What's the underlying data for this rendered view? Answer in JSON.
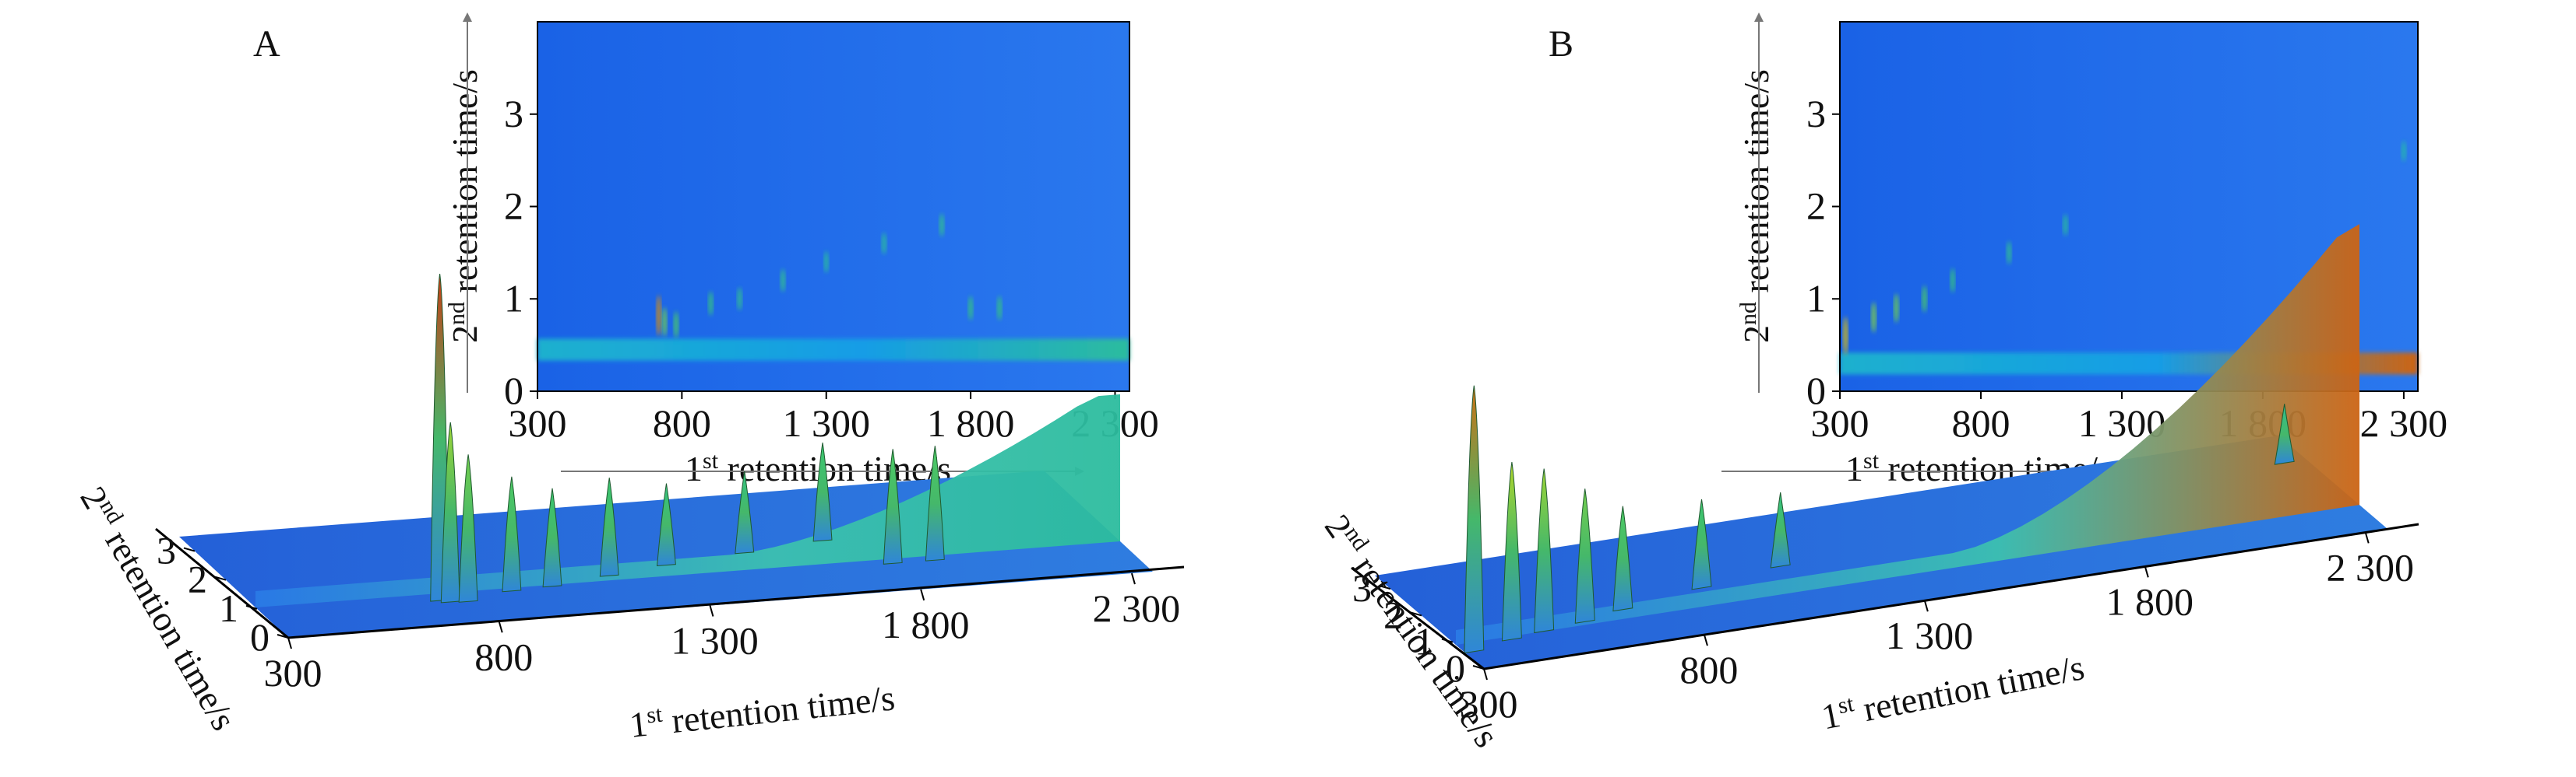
{
  "chart_data": [
    {
      "panel": "A",
      "type": "heatmap",
      "views": [
        "3d-surface",
        "2d-contour"
      ],
      "xlabel_main": "1",
      "xlabel_sup": "st",
      "xlabel_rest": " retention time/s",
      "ylabel_main": "2",
      "ylabel_sup": "nd",
      "ylabel_rest": " retention time/s",
      "xticks": [
        "300",
        "800",
        "1 300",
        "1 800",
        "2 300"
      ],
      "yticks": [
        "0",
        "1",
        "2",
        "3"
      ],
      "xlim": [
        300,
        2350
      ],
      "ylim": [
        0,
        4
      ],
      "peaks": [
        {
          "x": 720,
          "y": 0.82,
          "intensity": 1.0
        },
        {
          "x": 740,
          "y": 0.75,
          "intensity": 0.55
        },
        {
          "x": 780,
          "y": 0.72,
          "intensity": 0.45
        },
        {
          "x": 900,
          "y": 0.95,
          "intensity": 0.35
        },
        {
          "x": 1000,
          "y": 1.0,
          "intensity": 0.3
        },
        {
          "x": 1150,
          "y": 1.2,
          "intensity": 0.3
        },
        {
          "x": 1300,
          "y": 1.4,
          "intensity": 0.25
        },
        {
          "x": 1500,
          "y": 1.6,
          "intensity": 0.25
        },
        {
          "x": 1700,
          "y": 1.8,
          "intensity": 0.3
        },
        {
          "x": 1800,
          "y": 0.9,
          "intensity": 0.35
        },
        {
          "x": 1900,
          "y": 0.9,
          "intensity": 0.35
        }
      ],
      "baseline_band": {
        "y": 0.45,
        "x_from": 300,
        "x_to": 2350,
        "intensity_end": 0.45
      }
    },
    {
      "panel": "B",
      "type": "heatmap",
      "views": [
        "3d-surface",
        "2d-contour"
      ],
      "xlabel_main": "1",
      "xlabel_sup": "st",
      "xlabel_rest": " retention time/s",
      "ylabel_main": "2",
      "ylabel_sup": "nd",
      "ylabel_rest": " retention time/s",
      "xticks": [
        "300",
        "800",
        "1 300",
        "1 800",
        "2 300"
      ],
      "yticks": [
        "0",
        "1",
        "2",
        "3"
      ],
      "xlim": [
        300,
        2350
      ],
      "ylim": [
        0,
        4
      ],
      "peaks": [
        {
          "x": 320,
          "y": 0.6,
          "intensity": 0.9
        },
        {
          "x": 420,
          "y": 0.8,
          "intensity": 0.6
        },
        {
          "x": 500,
          "y": 0.9,
          "intensity": 0.55
        },
        {
          "x": 600,
          "y": 1.0,
          "intensity": 0.45
        },
        {
          "x": 700,
          "y": 1.2,
          "intensity": 0.35
        },
        {
          "x": 900,
          "y": 1.5,
          "intensity": 0.3
        },
        {
          "x": 1100,
          "y": 1.8,
          "intensity": 0.25
        },
        {
          "x": 2300,
          "y": 2.6,
          "intensity": 0.2
        }
      ],
      "baseline_band": {
        "y": 0.3,
        "x_from": 300,
        "x_to": 2350,
        "intensity_end": 0.95
      }
    }
  ],
  "panels": {
    "a": {
      "letter": "A"
    },
    "b": {
      "letter": "B"
    }
  }
}
